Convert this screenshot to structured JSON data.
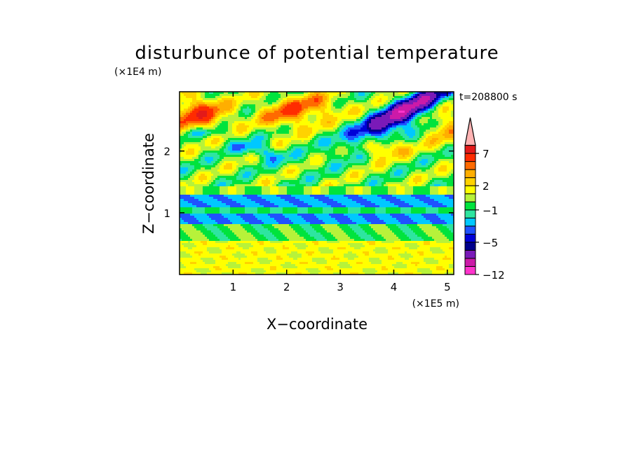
{
  "chart_data": {
    "type": "heatmap",
    "title": "disturbunce of potential temperature",
    "xlabel": "X−coordinate",
    "ylabel": "Z−coordinate",
    "x_scale_note": "(×1E5 m)",
    "y_scale_note": "(×1E4 m)",
    "time_label": "t=208800 s",
    "xlim": [
      0,
      5.12
    ],
    "ylim": [
      0,
      2.96
    ],
    "x_ticks": [
      {
        "value": 1,
        "label": "1"
      },
      {
        "value": 2,
        "label": "2"
      },
      {
        "value": 3,
        "label": "3"
      },
      {
        "value": 4,
        "label": "4"
      },
      {
        "value": 5,
        "label": "5"
      }
    ],
    "y_ticks": [
      {
        "value": 1,
        "label": "1"
      },
      {
        "value": 2,
        "label": "2"
      }
    ],
    "colorbar": {
      "levels": [
        -12,
        -10,
        -8,
        -6,
        -5,
        -4,
        -3,
        -2,
        -1,
        0,
        1,
        2,
        3,
        4,
        5,
        7,
        9,
        12
      ],
      "colors": [
        "#ff33cc",
        "#cc1aa8",
        "#7a1ab8",
        "#00008c",
        "#0000d8",
        "#1f52ff",
        "#00c8ff",
        "#2ee5a0",
        "#00e33d",
        "#b7f23a",
        "#ffff00",
        "#ffd200",
        "#ffae00",
        "#ff6a00",
        "#ff2b00",
        "#e31a1a",
        "#ffb3b3"
      ],
      "extend": "max",
      "tick_labels": [
        {
          "value": -12,
          "label": "−12"
        },
        {
          "value": -5,
          "label": "−5"
        },
        {
          "value": -1,
          "label": "−1"
        },
        {
          "value": 2,
          "label": "2"
        },
        {
          "value": 7,
          "label": "7"
        }
      ]
    },
    "grid": false
  }
}
